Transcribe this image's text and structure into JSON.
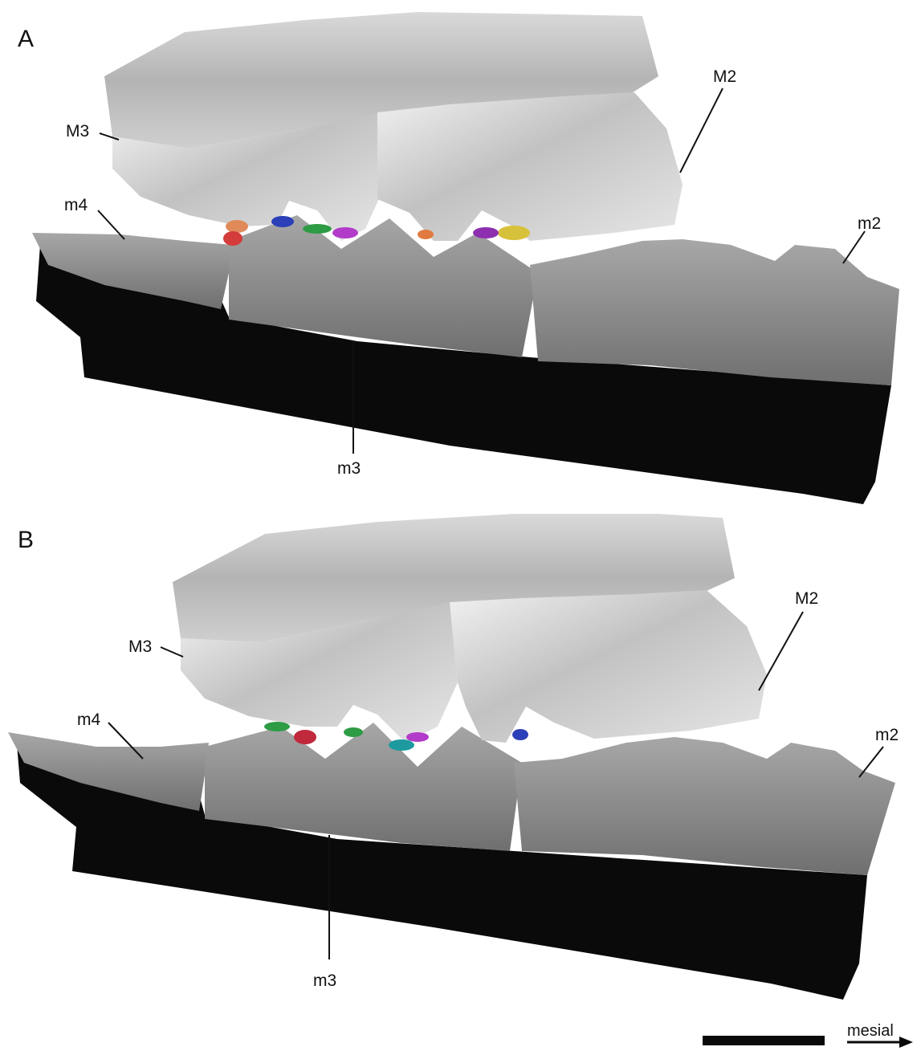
{
  "panels": [
    {
      "letter": "A",
      "labels": {
        "upper_back": "M3",
        "upper_front": "M2",
        "lower_back": "m4",
        "lower_mid": "m3",
        "lower_front": "m2"
      },
      "contact_colors": [
        "#e08a5a",
        "#d43b3b",
        "#2a3fb8",
        "#2e9b45",
        "#b23cc9",
        "#d8c13a",
        "#e07a40",
        "#8e2fb0"
      ]
    },
    {
      "letter": "B",
      "labels": {
        "upper_back": "M3",
        "upper_front": "M2",
        "lower_back": "m4",
        "lower_mid": "m3",
        "lower_front": "m2"
      },
      "contact_colors": [
        "#2e9b45",
        "#c0283c",
        "#1d9aa0",
        "#b23cc9",
        "#2e9b45",
        "#2a3fb8"
      ]
    }
  ],
  "scale_bar": {
    "direction_label": "mesial"
  },
  "colors": {
    "upper_tooth": "#bdbdbd",
    "lower_tooth": "#8f8f8f",
    "jaw_section": "#0a0a0a",
    "ink": "#111111"
  }
}
